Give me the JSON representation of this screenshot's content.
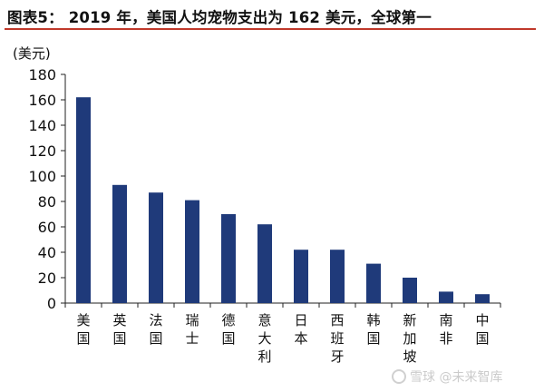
{
  "header": {
    "title": "图表5：  2019 年，美国人均宠物支出为 162 美元，全球第一"
  },
  "chart_data": {
    "type": "bar",
    "title": "图表5：  2019 年，美国人均宠物支出为 162 美元，全球第一",
    "ylabel": "(美元)",
    "xlabel": "",
    "ylim": [
      0,
      180
    ],
    "yticks": [
      0,
      20,
      40,
      60,
      80,
      100,
      120,
      140,
      160,
      180
    ],
    "grid": false,
    "legend": "none",
    "categories": [
      "美国",
      "英国",
      "法国",
      "瑞士",
      "德国",
      "意大利",
      "日本",
      "西班牙",
      "韩国",
      "新加坡",
      "南非",
      "中国"
    ],
    "values": [
      162,
      93,
      87,
      81,
      70,
      62,
      42,
      42,
      31,
      20,
      9,
      7
    ],
    "bar_color": "#1f3a7a",
    "accent_color": "#c0392b"
  },
  "watermark": {
    "text": "雪球 @未来智库"
  }
}
